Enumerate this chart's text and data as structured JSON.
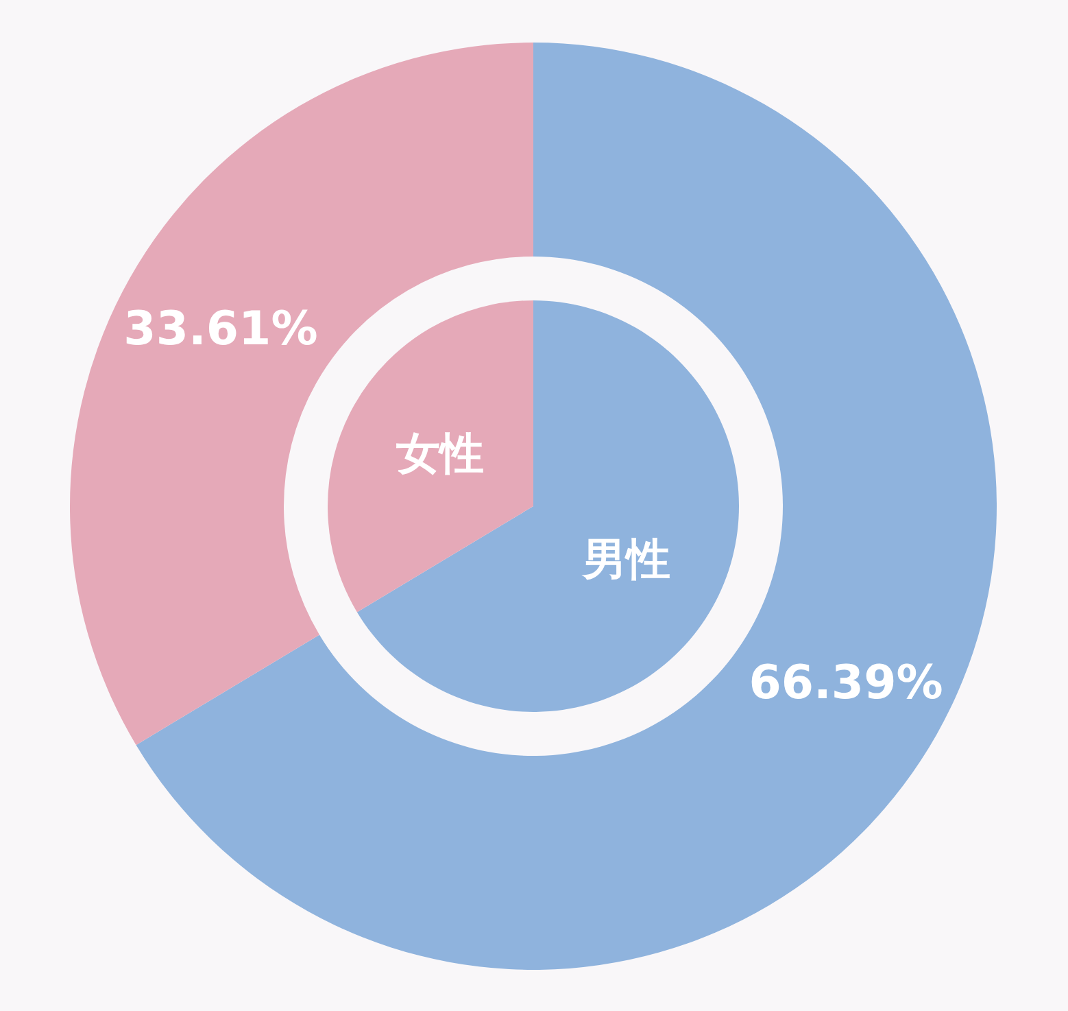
{
  "chart_data": {
    "type": "donut",
    "categories": [
      "男性",
      "女性"
    ],
    "colors": [
      "#8fb3dd",
      "#e5a9b8"
    ],
    "series": [
      {
        "values": [
          66.39,
          33.61
        ],
        "value_labels": [
          "66.39%",
          "33.61%"
        ]
      },
      {
        "values": [
          66.39,
          33.61
        ]
      }
    ]
  }
}
